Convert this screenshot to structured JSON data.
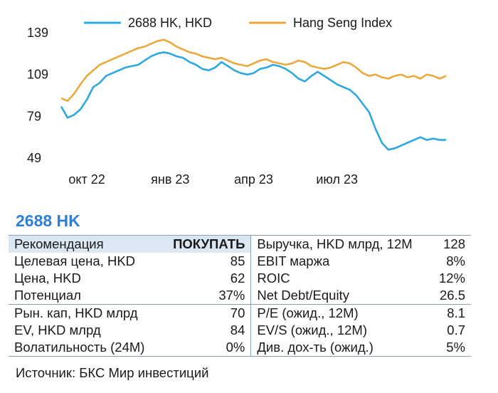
{
  "chart_data": {
    "type": "line",
    "legend": "top",
    "grid": false,
    "ylim": [
      49,
      139
    ],
    "yticks": [
      49,
      79,
      109,
      139
    ],
    "xtick_labels": [
      "окт 22",
      "янв 23",
      "апр 23",
      "июл 23"
    ],
    "xtick_positions": [
      4,
      17,
      30,
      43
    ],
    "x": [
      0,
      1,
      2,
      3,
      4,
      5,
      6,
      7,
      8,
      9,
      10,
      11,
      12,
      13,
      14,
      15,
      16,
      17,
      18,
      19,
      20,
      21,
      22,
      23,
      24,
      25,
      26,
      27,
      28,
      29,
      30,
      31,
      32,
      33,
      34,
      35,
      36,
      37,
      38,
      39,
      40,
      41,
      42,
      43,
      44,
      45,
      46,
      47,
      48,
      49,
      50,
      51,
      52,
      53,
      54,
      55,
      56,
      57,
      58,
      59,
      60
    ],
    "series": [
      {
        "name": "2688 HK, HKD",
        "color": "#2ea8e0",
        "values": [
          86,
          78,
          80,
          84,
          91,
          100,
          103,
          108,
          110,
          112,
          114,
          115,
          116,
          119,
          122,
          124,
          125,
          124,
          122,
          121,
          118,
          116,
          113,
          112,
          114,
          118,
          115,
          112,
          110,
          109,
          110,
          113,
          114,
          116,
          115,
          113,
          110,
          106,
          104,
          108,
          111,
          108,
          105,
          102,
          100,
          98,
          94,
          88,
          82,
          70,
          60,
          55,
          56,
          58,
          60,
          62,
          64,
          62,
          63,
          62,
          62
        ],
        "title": "2688 HK, HKD"
      },
      {
        "name": "Hang Seng Index",
        "color": "#e9a93c",
        "values": [
          92,
          90,
          95,
          102,
          108,
          112,
          116,
          118,
          120,
          122,
          124,
          126,
          128,
          129,
          131,
          133,
          134,
          132,
          129,
          127,
          125,
          124,
          122,
          121,
          120,
          121,
          119,
          117,
          116,
          115,
          117,
          119,
          120,
          118,
          117,
          116,
          117,
          119,
          118,
          115,
          114,
          113,
          114,
          116,
          118,
          117,
          114,
          110,
          108,
          109,
          107,
          106,
          108,
          109,
          107,
          108,
          106,
          109,
          108,
          106,
          108
        ]
      }
    ]
  },
  "summary": {
    "ticker": "2688 HK",
    "rows": [
      {
        "l_label": "Рекомендация",
        "l_value": "ПОКУПАТЬ",
        "r_label": "Выручка, HKD млрд, 12M",
        "r_value": "128"
      },
      {
        "l_label": "Целевая цена, HKD",
        "l_value": "85",
        "r_label": "EBIT маржа",
        "r_value": "8%"
      },
      {
        "l_label": "Цена, HKD",
        "l_value": "62",
        "r_label": "ROIC",
        "r_value": "12%"
      },
      {
        "l_label": "Потенциал",
        "l_value": "37%",
        "r_label": "Net Debt/Equity",
        "r_value": "26.5"
      },
      {
        "l_label": "Рын. кап, HKD млрд",
        "l_value": "70",
        "r_label": "P/E (ожид., 12M)",
        "r_value": "8.1"
      },
      {
        "l_label": "EV, HKD млрд",
        "l_value": "84",
        "r_label": "EV/S (ожид., 12M)",
        "r_value": "0.7"
      },
      {
        "l_label": "Волатильность (24M)",
        "l_value": "0%",
        "r_label": "Див. дох-ть (ожид.)",
        "r_value": "5%"
      }
    ],
    "source": "Источник: БКС Мир инвестиций"
  }
}
